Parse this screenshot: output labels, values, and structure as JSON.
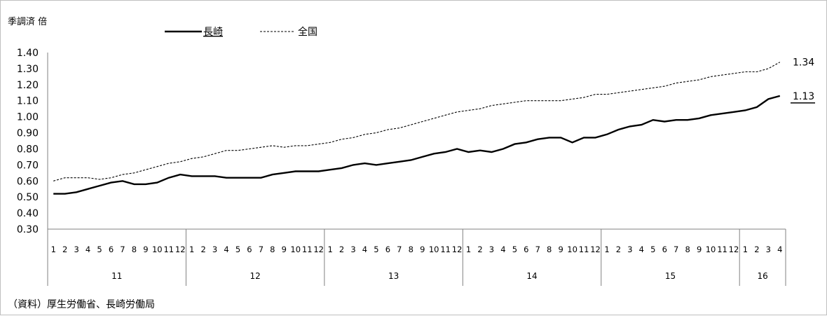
{
  "chart_data": {
    "type": "line",
    "title": "",
    "ylabel": "季調済 倍",
    "ylim": [
      0.3,
      1.4
    ],
    "yticks": [
      "0.30",
      "0.40",
      "0.50",
      "0.60",
      "0.70",
      "0.80",
      "0.90",
      "1.00",
      "1.10",
      "1.20",
      "1.30",
      "1.40"
    ],
    "x_month_labels": [
      "1",
      "2",
      "3",
      "4",
      "5",
      "6",
      "7",
      "8",
      "9",
      "10",
      "11",
      "12",
      "1",
      "2",
      "3",
      "4",
      "5",
      "6",
      "7",
      "8",
      "9",
      "10",
      "11",
      "12",
      "1",
      "2",
      "3",
      "4",
      "5",
      "6",
      "7",
      "8",
      "9",
      "10",
      "11",
      "12",
      "1",
      "2",
      "3",
      "4",
      "5",
      "6",
      "7",
      "8",
      "9",
      "10",
      "11",
      "12",
      "1",
      "2",
      "3",
      "4",
      "5",
      "6",
      "7",
      "8",
      "9",
      "10",
      "11",
      "12",
      "1",
      "2",
      "3",
      "4"
    ],
    "x_year_groups": [
      {
        "label": "11",
        "months": 12
      },
      {
        "label": "12",
        "months": 12
      },
      {
        "label": "13",
        "months": 12
      },
      {
        "label": "14",
        "months": 12
      },
      {
        "label": "15",
        "months": 12
      },
      {
        "label": "16",
        "months": 4
      }
    ],
    "series": [
      {
        "name": "長崎",
        "style": "solid",
        "color": "#000000",
        "end_label": "1.13",
        "values": [
          0.52,
          0.52,
          0.53,
          0.55,
          0.57,
          0.59,
          0.6,
          0.58,
          0.58,
          0.59,
          0.62,
          0.64,
          0.63,
          0.63,
          0.63,
          0.62,
          0.62,
          0.62,
          0.62,
          0.64,
          0.65,
          0.66,
          0.66,
          0.66,
          0.67,
          0.68,
          0.7,
          0.71,
          0.7,
          0.71,
          0.72,
          0.73,
          0.75,
          0.77,
          0.78,
          0.8,
          0.78,
          0.79,
          0.78,
          0.8,
          0.83,
          0.84,
          0.86,
          0.87,
          0.87,
          0.84,
          0.87,
          0.87,
          0.89,
          0.92,
          0.94,
          0.95,
          0.98,
          0.97,
          0.98,
          0.98,
          0.99,
          1.01,
          1.02,
          1.03,
          1.04,
          1.06,
          1.11,
          1.13
        ]
      },
      {
        "name": "全国",
        "style": "dashed",
        "color": "#000000",
        "end_label": "1.34",
        "values": [
          0.6,
          0.62,
          0.62,
          0.62,
          0.61,
          0.62,
          0.64,
          0.65,
          0.67,
          0.69,
          0.71,
          0.72,
          0.74,
          0.75,
          0.77,
          0.79,
          0.79,
          0.8,
          0.81,
          0.82,
          0.81,
          0.82,
          0.82,
          0.83,
          0.84,
          0.86,
          0.87,
          0.89,
          0.9,
          0.92,
          0.93,
          0.95,
          0.97,
          0.99,
          1.01,
          1.03,
          1.04,
          1.05,
          1.07,
          1.08,
          1.09,
          1.1,
          1.1,
          1.1,
          1.1,
          1.11,
          1.12,
          1.14,
          1.14,
          1.15,
          1.16,
          1.17,
          1.18,
          1.19,
          1.21,
          1.22,
          1.23,
          1.25,
          1.26,
          1.27,
          1.28,
          1.28,
          1.3,
          1.34
        ]
      }
    ],
    "legend_position": "top",
    "grid": false,
    "source_note": "（資料）厚生労働省、長崎労働局"
  }
}
